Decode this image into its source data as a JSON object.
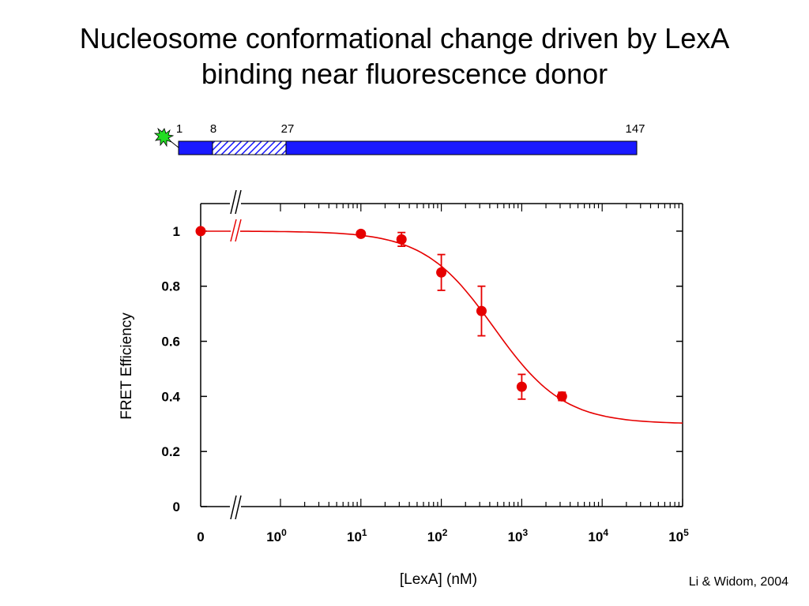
{
  "title": {
    "line1": "Nucleosome conformational change driven by LexA",
    "line2": "binding near fluorescence donor"
  },
  "citation": "Li & Widom, 2004",
  "dna_schematic": {
    "position_labels": [
      "1",
      "8",
      "27",
      "147"
    ],
    "segment_color": "#1a1aff",
    "binding_site_pattern": "hatched",
    "fluorophore_color": "#22dd22",
    "fluorophore_icon": "starburst-icon"
  },
  "chart_data": {
    "type": "scatter",
    "xlabel": "[LexA] (nM)",
    "ylabel": "FRET Efficiency",
    "x_scale": "log",
    "x_axis_break": true,
    "xlim": [
      0.1,
      100000
    ],
    "ylim": [
      0,
      1.1
    ],
    "x_tick_labels": [
      {
        "value": 0,
        "base": "0",
        "exp": ""
      },
      {
        "value": 1,
        "base": "10",
        "exp": "0"
      },
      {
        "value": 10,
        "base": "10",
        "exp": "1"
      },
      {
        "value": 100,
        "base": "10",
        "exp": "2"
      },
      {
        "value": 1000,
        "base": "10",
        "exp": "3"
      },
      {
        "value": 10000,
        "base": "10",
        "exp": "4"
      },
      {
        "value": 100000,
        "base": "10",
        "exp": "5"
      }
    ],
    "y_ticks": [
      {
        "value": 0,
        "label": "0"
      },
      {
        "value": 0.2,
        "label": "0.2"
      },
      {
        "value": 0.4,
        "label": "0.4"
      },
      {
        "value": 0.6,
        "label": "0.6"
      },
      {
        "value": 0.8,
        "label": "0.8"
      },
      {
        "value": 1,
        "label": "1"
      }
    ],
    "series": [
      {
        "color": "#e60000",
        "points": [
          {
            "x": 0,
            "y": 1.0,
            "err": 0
          },
          {
            "x": 10,
            "y": 0.99,
            "err": 0.01
          },
          {
            "x": 32,
            "y": 0.97,
            "err": 0.025
          },
          {
            "x": 100,
            "y": 0.85,
            "err": 0.065
          },
          {
            "x": 316,
            "y": 0.71,
            "err": 0.09
          },
          {
            "x": 1000,
            "y": 0.435,
            "err": 0.045
          },
          {
            "x": 3162,
            "y": 0.4,
            "err": 0.015
          }
        ]
      }
    ],
    "fit_curve": {
      "top": 1.0,
      "bottom": 0.3,
      "ec50_nM": 450,
      "hill": 1.0,
      "color": "#e60000"
    },
    "grid": false
  }
}
